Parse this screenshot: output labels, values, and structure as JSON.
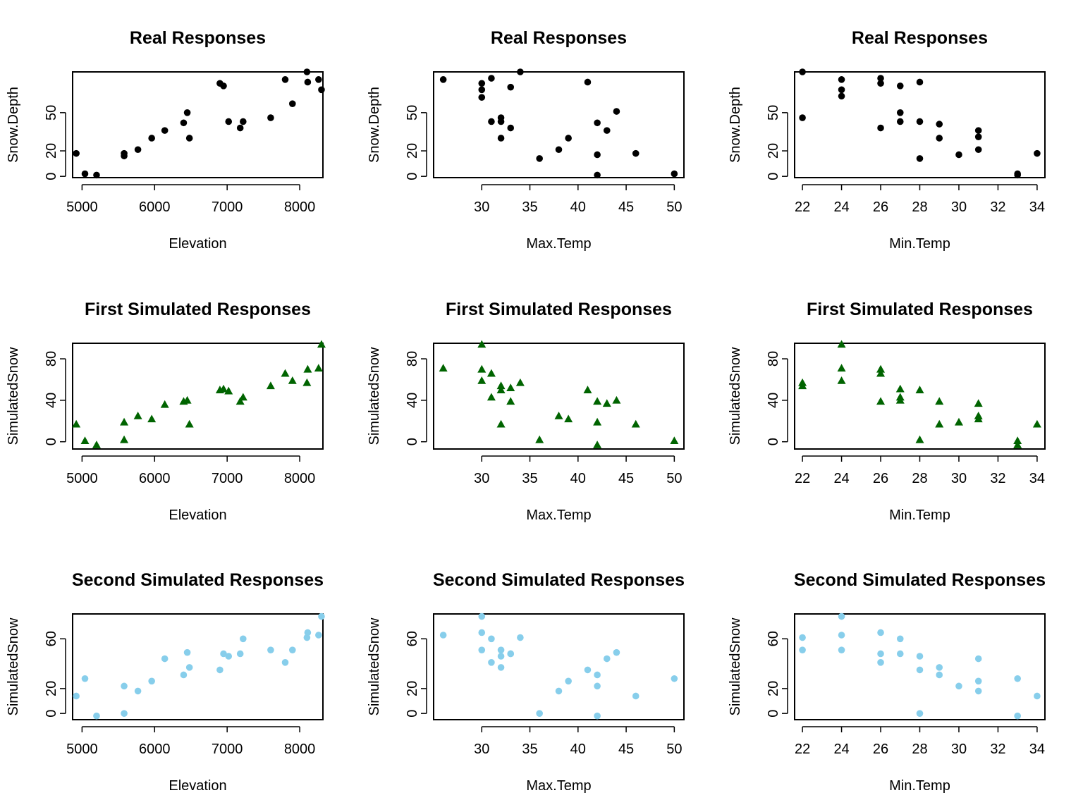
{
  "chart_data": [
    {
      "type": "scatter",
      "title": "Real Responses",
      "xlabel": "Elevation",
      "ylabel": "Snow.Depth",
      "xlim": [
        4870,
        8320
      ],
      "ylim": [
        -1,
        82
      ],
      "xticks": [
        5000,
        6000,
        7000,
        8000
      ],
      "yticks": [
        0,
        20,
        50
      ],
      "marker": "circle",
      "color": "#000000",
      "points": [
        [
          4920,
          18
        ],
        [
          5040,
          2
        ],
        [
          5200,
          1
        ],
        [
          5580,
          16
        ],
        [
          5580,
          18
        ],
        [
          5770,
          21
        ],
        [
          5960,
          30
        ],
        [
          6140,
          36
        ],
        [
          6400,
          42
        ],
        [
          6450,
          50
        ],
        [
          6480,
          30
        ],
        [
          6900,
          73
        ],
        [
          6950,
          71
        ],
        [
          7020,
          43
        ],
        [
          7180,
          38
        ],
        [
          7220,
          43
        ],
        [
          7600,
          46
        ],
        [
          7800,
          76
        ],
        [
          7900,
          57
        ],
        [
          8100,
          82
        ],
        [
          8110,
          74
        ],
        [
          8260,
          76
        ],
        [
          8300,
          68
        ]
      ]
    },
    {
      "type": "scatter",
      "title": "Real Responses",
      "xlabel": "Max.Temp",
      "ylabel": "Snow.Depth",
      "xlim": [
        25,
        51
      ],
      "ylim": [
        -1,
        82
      ],
      "xticks": [
        30,
        35,
        40,
        45,
        50
      ],
      "yticks": [
        0,
        20,
        50
      ],
      "marker": "circle",
      "color": "#000000",
      "points": [
        [
          26,
          76
        ],
        [
          30,
          73
        ],
        [
          30,
          68
        ],
        [
          30,
          62
        ],
        [
          31,
          77
        ],
        [
          31,
          43
        ],
        [
          32,
          46
        ],
        [
          32,
          43
        ],
        [
          32,
          30
        ],
        [
          33,
          70
        ],
        [
          33,
          38
        ],
        [
          34,
          82
        ],
        [
          36,
          14
        ],
        [
          38,
          21
        ],
        [
          39,
          30
        ],
        [
          41,
          74
        ],
        [
          42,
          42
        ],
        [
          42,
          17
        ],
        [
          42,
          1
        ],
        [
          43,
          36
        ],
        [
          44,
          51
        ],
        [
          46,
          18
        ],
        [
          50,
          2
        ]
      ]
    },
    {
      "type": "scatter",
      "title": "Real Responses",
      "xlabel": "Min.Temp",
      "ylabel": "Snow.Depth",
      "xlim": [
        21.6,
        34.4
      ],
      "ylim": [
        -1,
        82
      ],
      "xticks": [
        22,
        24,
        26,
        28,
        30,
        32,
        34
      ],
      "yticks": [
        0,
        20,
        50
      ],
      "marker": "circle",
      "color": "#000000",
      "points": [
        [
          22,
          82
        ],
        [
          22,
          46
        ],
        [
          24,
          76
        ],
        [
          24,
          68
        ],
        [
          24,
          63
        ],
        [
          26,
          77
        ],
        [
          26,
          73
        ],
        [
          26,
          38
        ],
        [
          27,
          71
        ],
        [
          27,
          50
        ],
        [
          27,
          43
        ],
        [
          28,
          74
        ],
        [
          28,
          43
        ],
        [
          28,
          14
        ],
        [
          29,
          41
        ],
        [
          29,
          30
        ],
        [
          30,
          17
        ],
        [
          31,
          36
        ],
        [
          31,
          31
        ],
        [
          31,
          21
        ],
        [
          33,
          2
        ],
        [
          33,
          1
        ],
        [
          34,
          18
        ]
      ]
    },
    {
      "type": "scatter",
      "title": "First Simulated Responses",
      "xlabel": "Elevation",
      "ylabel": "SimulatedSnow",
      "xlim": [
        4870,
        8320
      ],
      "ylim": [
        -7,
        95
      ],
      "xticks": [
        5000,
        6000,
        7000,
        8000
      ],
      "yticks": [
        0,
        40,
        80
      ],
      "marker": "triangle",
      "color": "#006400",
      "points": [
        [
          4920,
          17
        ],
        [
          5040,
          1
        ],
        [
          5200,
          -3
        ],
        [
          5580,
          2
        ],
        [
          5580,
          19
        ],
        [
          5770,
          25
        ],
        [
          5960,
          22
        ],
        [
          6140,
          36
        ],
        [
          6400,
          39
        ],
        [
          6450,
          40
        ],
        [
          6480,
          17
        ],
        [
          6900,
          50
        ],
        [
          6950,
          51
        ],
        [
          7020,
          49
        ],
        [
          7180,
          39
        ],
        [
          7220,
          43
        ],
        [
          7600,
          54
        ],
        [
          7800,
          66
        ],
        [
          7900,
          59
        ],
        [
          8100,
          57
        ],
        [
          8110,
          70
        ],
        [
          8260,
          71
        ],
        [
          8300,
          94
        ]
      ]
    },
    {
      "type": "scatter",
      "title": "First Simulated Responses",
      "xlabel": "Max.Temp",
      "ylabel": "SimulatedSnow",
      "xlim": [
        25,
        51
      ],
      "ylim": [
        -7,
        95
      ],
      "xticks": [
        30,
        35,
        40,
        45,
        50
      ],
      "yticks": [
        0,
        40,
        80
      ],
      "marker": "triangle",
      "color": "#006400",
      "points": [
        [
          26,
          71
        ],
        [
          30,
          94
        ],
        [
          30,
          70
        ],
        [
          30,
          59
        ],
        [
          31,
          66
        ],
        [
          31,
          43
        ],
        [
          32,
          54
        ],
        [
          32,
          50
        ],
        [
          32,
          17
        ],
        [
          33,
          52
        ],
        [
          33,
          39
        ],
        [
          34,
          57
        ],
        [
          36,
          2
        ],
        [
          38,
          25
        ],
        [
          39,
          22
        ],
        [
          41,
          50
        ],
        [
          42,
          39
        ],
        [
          42,
          19
        ],
        [
          42,
          -3
        ],
        [
          43,
          37
        ],
        [
          44,
          40
        ],
        [
          46,
          17
        ],
        [
          50,
          1
        ]
      ]
    },
    {
      "type": "scatter",
      "title": "First Simulated Responses",
      "xlabel": "Min.Temp",
      "ylabel": "SimulatedSnow",
      "xlim": [
        21.6,
        34.4
      ],
      "ylim": [
        -7,
        95
      ],
      "xticks": [
        22,
        24,
        26,
        28,
        30,
        32,
        34
      ],
      "yticks": [
        0,
        40,
        80
      ],
      "marker": "triangle",
      "color": "#006400",
      "points": [
        [
          22,
          57
        ],
        [
          22,
          54
        ],
        [
          24,
          94
        ],
        [
          24,
          71
        ],
        [
          24,
          59
        ],
        [
          26,
          70
        ],
        [
          26,
          66
        ],
        [
          26,
          39
        ],
        [
          27,
          51
        ],
        [
          27,
          43
        ],
        [
          27,
          40
        ],
        [
          28,
          50
        ],
        [
          28,
          2
        ],
        [
          29,
          39
        ],
        [
          29,
          17
        ],
        [
          30,
          19
        ],
        [
          31,
          37
        ],
        [
          31,
          25
        ],
        [
          31,
          22
        ],
        [
          33,
          1
        ],
        [
          33,
          -3
        ],
        [
          34,
          17
        ]
      ]
    },
    {
      "type": "scatter",
      "title": "Second Simulated Responses",
      "xlabel": "Elevation",
      "ylabel": "SimulatedSnow",
      "xlim": [
        4870,
        8320
      ],
      "ylim": [
        -5,
        80
      ],
      "xticks": [
        5000,
        6000,
        7000,
        8000
      ],
      "yticks": [
        0,
        20,
        60
      ],
      "marker": "circle",
      "color": "#87CEEB",
      "points": [
        [
          4920,
          14
        ],
        [
          5040,
          28
        ],
        [
          5200,
          -2
        ],
        [
          5580,
          0
        ],
        [
          5580,
          22
        ],
        [
          5770,
          18
        ],
        [
          5960,
          26
        ],
        [
          6140,
          44
        ],
        [
          6400,
          31
        ],
        [
          6450,
          49
        ],
        [
          6480,
          37
        ],
        [
          6900,
          35
        ],
        [
          6950,
          48
        ],
        [
          7020,
          46
        ],
        [
          7180,
          48
        ],
        [
          7220,
          60
        ],
        [
          7600,
          51
        ],
        [
          7800,
          41
        ],
        [
          7900,
          51
        ],
        [
          8100,
          61
        ],
        [
          8110,
          65
        ],
        [
          8260,
          63
        ],
        [
          8300,
          78
        ]
      ]
    },
    {
      "type": "scatter",
      "title": "Second Simulated Responses",
      "xlabel": "Max.Temp",
      "ylabel": "SimulatedSnow",
      "xlim": [
        25,
        51
      ],
      "ylim": [
        -5,
        80
      ],
      "xticks": [
        30,
        35,
        40,
        45,
        50
      ],
      "yticks": [
        0,
        20,
        60
      ],
      "marker": "circle",
      "color": "#87CEEB",
      "points": [
        [
          26,
          63
        ],
        [
          30,
          78
        ],
        [
          30,
          65
        ],
        [
          30,
          51
        ],
        [
          31,
          60
        ],
        [
          31,
          41
        ],
        [
          32,
          51
        ],
        [
          32,
          46
        ],
        [
          32,
          37
        ],
        [
          33,
          48
        ],
        [
          33,
          48
        ],
        [
          34,
          61
        ],
        [
          36,
          0
        ],
        [
          38,
          18
        ],
        [
          39,
          26
        ],
        [
          41,
          35
        ],
        [
          42,
          31
        ],
        [
          42,
          22
        ],
        [
          42,
          -2
        ],
        [
          43,
          44
        ],
        [
          44,
          49
        ],
        [
          46,
          14
        ],
        [
          50,
          28
        ]
      ]
    },
    {
      "type": "scatter",
      "title": "Second Simulated Responses",
      "xlabel": "Min.Temp",
      "ylabel": "SimulatedSnow",
      "xlim": [
        21.6,
        34.4
      ],
      "ylim": [
        -5,
        80
      ],
      "xticks": [
        22,
        24,
        26,
        28,
        30,
        32,
        34
      ],
      "yticks": [
        0,
        20,
        60
      ],
      "marker": "circle",
      "color": "#87CEEB",
      "points": [
        [
          22,
          61
        ],
        [
          22,
          51
        ],
        [
          24,
          78
        ],
        [
          24,
          63
        ],
        [
          24,
          51
        ],
        [
          26,
          65
        ],
        [
          26,
          48
        ],
        [
          26,
          41
        ],
        [
          27,
          60
        ],
        [
          27,
          48
        ],
        [
          28,
          46
        ],
        [
          28,
          35
        ],
        [
          28,
          0
        ],
        [
          29,
          37
        ],
        [
          29,
          31
        ],
        [
          30,
          22
        ],
        [
          31,
          44
        ],
        [
          31,
          26
        ],
        [
          31,
          18
        ],
        [
          33,
          28
        ],
        [
          33,
          -2
        ],
        [
          34,
          14
        ]
      ]
    }
  ]
}
